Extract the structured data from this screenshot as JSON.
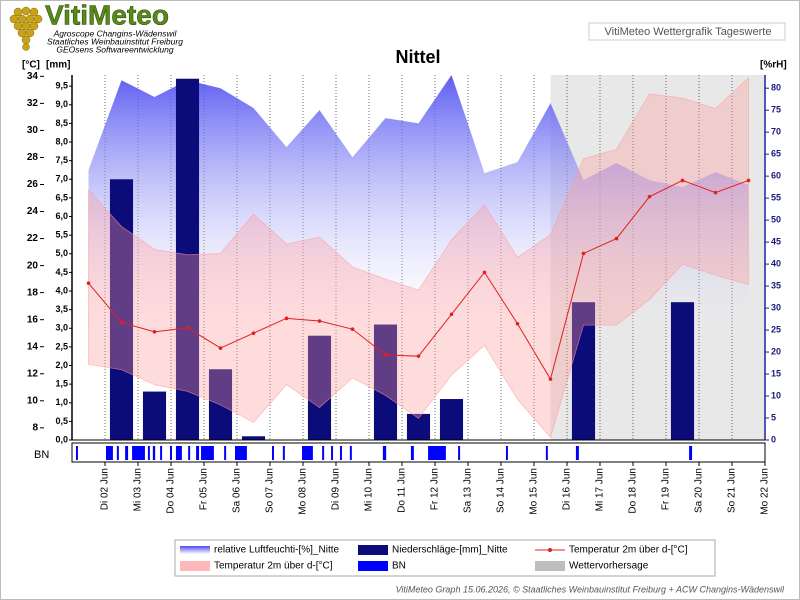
{
  "header": {
    "logo": "VitiMeteo",
    "lines": [
      "Agroscope Changins-Wädenswil",
      "Staatliches Weinbauinstitut Freiburg",
      "GEOsens Softwareentwicklung"
    ],
    "badge": "VitiMeteo Wettergrafik Tageswerte"
  },
  "chart_data": {
    "type": "combo",
    "title": "Nittel",
    "ylabel": "[°C]",
    "ylim": [
      7.1,
      34.1
    ],
    "yticks": [
      8,
      10,
      12,
      14,
      16,
      18,
      20,
      22,
      24,
      26,
      28,
      30,
      32,
      34
    ],
    "y3label": "[mm]",
    "y3lim": [
      0,
      9.8
    ],
    "y3ticks": [
      {
        "value": 0,
        "label": "0,0"
      },
      {
        "value": 0.5,
        "label": "0,5"
      },
      {
        "value": 1,
        "label": "1,0"
      },
      {
        "value": 1.5,
        "label": "1,5"
      },
      {
        "value": 2,
        "label": "2,0"
      },
      {
        "value": 2.5,
        "label": "2,5"
      },
      {
        "value": 3,
        "label": "3,0"
      },
      {
        "value": 3.5,
        "label": "3,5"
      },
      {
        "value": 4,
        "label": "4,0"
      },
      {
        "value": 4.5,
        "label": "4,5"
      },
      {
        "value": 5,
        "label": "5,0"
      },
      {
        "value": 5.5,
        "label": "5,5"
      },
      {
        "value": 6,
        "label": "6,0"
      },
      {
        "value": 6.5,
        "label": "6,5"
      },
      {
        "value": 7,
        "label": "7,0"
      },
      {
        "value": 7.5,
        "label": "7,5"
      },
      {
        "value": 8,
        "label": "8,0"
      },
      {
        "value": 8.5,
        "label": "8,5"
      },
      {
        "value": 9,
        "label": "9,0"
      },
      {
        "value": 9.5,
        "label": "9,5"
      }
    ],
    "y2label": "[%rH]",
    "y2lim": [
      0,
      83
    ],
    "y2ticks": [
      0,
      5,
      10,
      15,
      20,
      25,
      30,
      35,
      40,
      45,
      50,
      55,
      60,
      65,
      70,
      75,
      80
    ],
    "xlim": [
      1,
      22
    ],
    "xticks": [
      {
        "value": 2,
        "label": "Di 02 Jun"
      },
      {
        "value": 3,
        "label": "Mi 03 Jun"
      },
      {
        "value": 4,
        "label": "Do 04 Jun"
      },
      {
        "value": 5,
        "label": "Fr 05 Jun"
      },
      {
        "value": 6,
        "label": "Sa 06 Jun"
      },
      {
        "value": 7,
        "label": "So 07 Jun"
      },
      {
        "value": 8,
        "label": "Mo 08 Jun"
      },
      {
        "value": 9,
        "label": "Di 09 Jun"
      },
      {
        "value": 10,
        "label": "Mi 10 Jun"
      },
      {
        "value": 11,
        "label": "Do 11 Jun"
      },
      {
        "value": 12,
        "label": "Fr 12 Jun"
      },
      {
        "value": 13,
        "label": "Sa 13 Jun"
      },
      {
        "value": 14,
        "label": "So 14 Jun"
      },
      {
        "value": 15,
        "label": "Mo 15 Jun"
      },
      {
        "value": 16,
        "label": "Di 16 Jun"
      },
      {
        "value": 17,
        "label": "Mi 17 Jun"
      },
      {
        "value": 18,
        "label": "Do 18 Jun"
      },
      {
        "value": 19,
        "label": "Fr 19 Jun"
      },
      {
        "value": 20,
        "label": "Sa 20 Jun"
      },
      {
        "value": 21,
        "label": "So 21 Jun"
      },
      {
        "value": 22,
        "label": "Mo 22 Jun"
      }
    ],
    "grid": "x",
    "x": [
      1.5,
      2.5,
      3.5,
      4.5,
      5.5,
      6.5,
      7.5,
      8.5,
      9.5,
      10.5,
      11.5,
      12.5,
      13.5,
      14.5,
      15.5,
      16.5,
      17.5,
      18.5,
      19.5,
      20.5,
      21.5
    ],
    "series": [
      {
        "name": "relative Luftfeuchti-[%]_Nitte",
        "type": "area",
        "axis": "y2",
        "color": "#4b4bf0",
        "values": [
          61.4,
          81.8,
          78.0,
          81.8,
          80.0,
          75.5,
          66.6,
          75.0,
          64.3,
          73.2,
          72.0,
          83.0,
          60.7,
          63.2,
          76.6,
          59.1,
          63.0,
          59.1,
          57.5,
          60.9,
          58.0
        ]
      },
      {
        "name": "Niederschläge-[mm]_Nitte",
        "type": "bar",
        "axis": "y3",
        "color": "#0b0b7a",
        "values": [
          0,
          7.0,
          1.3,
          9.7,
          1.9,
          0.1,
          0,
          2.8,
          0,
          3.1,
          0.7,
          1.1,
          0,
          0,
          0,
          3.7,
          0,
          0,
          3.7,
          0,
          0
        ]
      },
      {
        "name": "Temperatur 2m über d-[°C]",
        "type": "band",
        "axis": "y",
        "color": "#ff9a9a",
        "low": [
          12.7,
          12.3,
          11.2,
          10.7,
          9.7,
          8.4,
          11.2,
          9.5,
          11.7,
          10.4,
          8.7,
          11.9,
          14.1,
          10.1,
          7.3,
          15.6,
          15.6,
          17.5,
          20.1,
          19.3,
          18.6
        ],
        "high": [
          25.6,
          22.9,
          21.2,
          20.8,
          20.9,
          23.8,
          21.6,
          22.1,
          19.9,
          19.0,
          18.2,
          21.9,
          24.5,
          20.6,
          22.3,
          27.9,
          28.6,
          32.7,
          32.4,
          31.6,
          33.9
        ]
      },
      {
        "name": "Temperatur 2m über d-[°C]",
        "type": "line",
        "axis": "y",
        "color": "#e02020",
        "values": [
          18.7,
          15.8,
          15.1,
          15.4,
          13.9,
          15.0,
          16.1,
          15.9,
          15.3,
          13.4,
          13.3,
          16.4,
          19.5,
          15.7,
          11.6,
          20.9,
          22.0,
          25.1,
          26.3,
          25.4,
          26.3
        ]
      }
    ],
    "bn": {
      "name": "BN",
      "color": "#0000ff",
      "intervals": [
        [
          1.12,
          1.18
        ],
        [
          2.03,
          2.24
        ],
        [
          2.36,
          2.42
        ],
        [
          2.61,
          2.7
        ],
        [
          2.82,
          3.21
        ],
        [
          3.3,
          3.36
        ],
        [
          3.45,
          3.52
        ],
        [
          3.67,
          3.73
        ],
        [
          3.97,
          4.03
        ],
        [
          4.15,
          4.33
        ],
        [
          4.52,
          4.58
        ],
        [
          4.76,
          4.85
        ],
        [
          4.91,
          5.3
        ],
        [
          5.61,
          5.67
        ],
        [
          5.94,
          6.3
        ],
        [
          7.06,
          7.12
        ],
        [
          7.39,
          7.45
        ],
        [
          7.97,
          8.3
        ],
        [
          8.58,
          8.64
        ],
        [
          8.85,
          8.91
        ],
        [
          9.12,
          9.18
        ],
        [
          9.42,
          9.48
        ],
        [
          10.42,
          10.52
        ],
        [
          11.27,
          11.36
        ],
        [
          11.79,
          12.33
        ],
        [
          12.7,
          12.76
        ],
        [
          14.15,
          14.21
        ],
        [
          15.36,
          15.42
        ],
        [
          16.27,
          16.36
        ],
        [
          19.7,
          19.79
        ]
      ]
    },
    "forecast": {
      "name": "Wettervorhersage",
      "color": "#bdbdbd",
      "range": [
        15.5,
        22
      ]
    }
  },
  "footer": "VitiMeteo Graph 15.06.2026, © Staatliches Weinbauinstitut Freiburg + ACW Changins-Wädenswil"
}
